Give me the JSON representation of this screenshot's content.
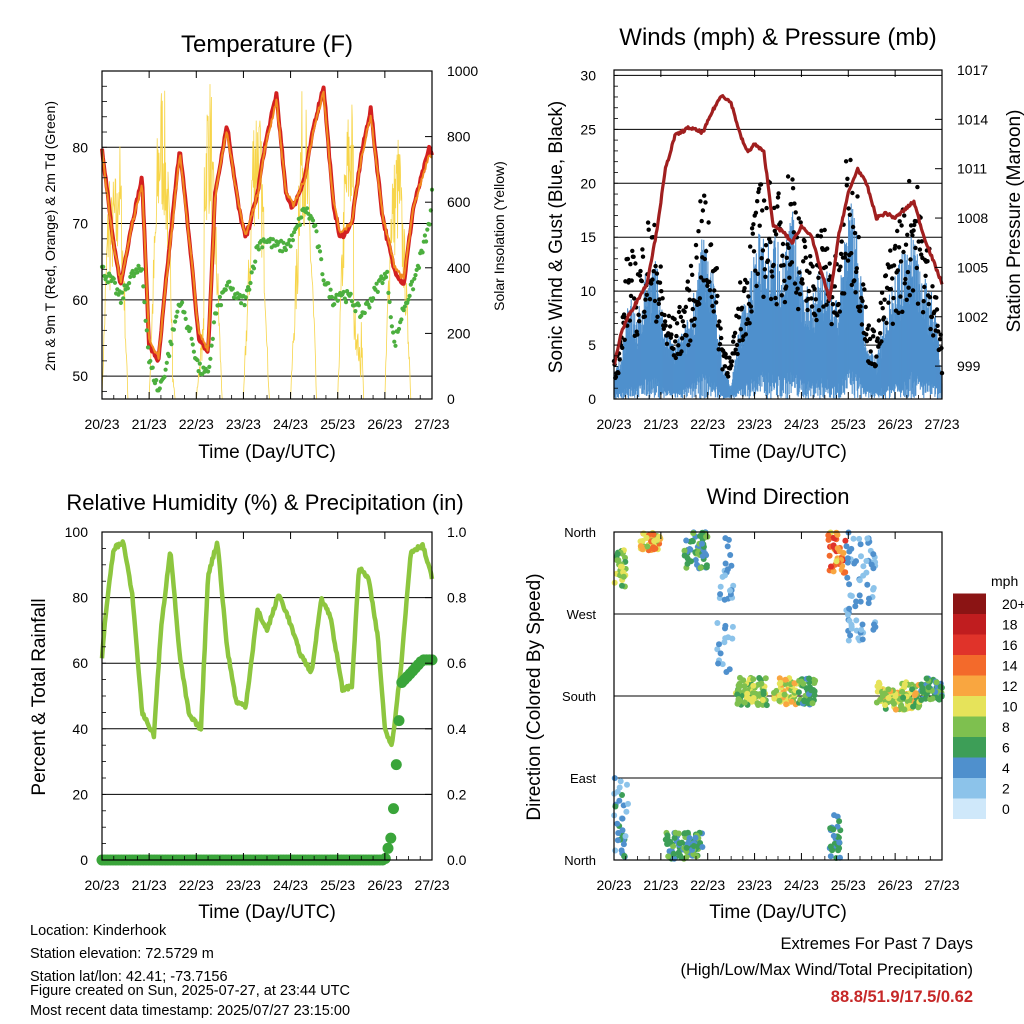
{
  "time_ticks": [
    "20/23",
    "21/23",
    "22/23",
    "23/23",
    "24/23",
    "25/23",
    "26/23",
    "27/23"
  ],
  "panels": {
    "temperature": {
      "title": "Temperature (F)",
      "xlabel": "Time (Day/UTC)",
      "ylabel_left": "2m & 9m T (Red, Orange) & 2m Td (Green)",
      "ylabel_right": "Solar Insolation (Yellow)",
      "left_ticks": [
        "50",
        "60",
        "70",
        "80"
      ],
      "right_ticks": [
        "0",
        "200",
        "400",
        "600",
        "800",
        "1000"
      ]
    },
    "winds": {
      "title": "Winds (mph) & Pressure (mb)",
      "xlabel": "Time (Day/UTC)",
      "ylabel_left": "Sonic Wind & Gust (Blue, Black)",
      "ylabel_right": "Station Pressure (Maroon)",
      "left_ticks": [
        "0",
        "5",
        "10",
        "15",
        "20",
        "25",
        "30"
      ],
      "right_ticks": [
        "999",
        "1002",
        "1005",
        "1008",
        "1011",
        "1014",
        "1017"
      ]
    },
    "humidity": {
      "title": "Relative Humidity (%) & Precipitation (in)",
      "xlabel": "Time (Day/UTC)",
      "ylabel_left": "Percent & Total Rainfall",
      "left_ticks": [
        "0",
        "20",
        "40",
        "60",
        "80",
        "100"
      ],
      "right_ticks": [
        "0.0",
        "0.2",
        "0.4",
        "0.6",
        "0.8",
        "1.0"
      ]
    },
    "direction": {
      "title": "Wind Direction",
      "xlabel": "Time (Day/UTC)",
      "ylabel_left": "Direction (Colored By Speed)",
      "dir_ticks": [
        "North",
        "East",
        "South",
        "West",
        "North"
      ],
      "colorbar_title": "mph",
      "colorbar_labels": [
        "0",
        "2",
        "4",
        "6",
        "8",
        "10",
        "12",
        "14",
        "16",
        "18",
        "20+"
      ],
      "colorbar_colors": [
        "#cfe8fa",
        "#8cc3ea",
        "#4f90cd",
        "#3d9e57",
        "#7ec04f",
        "#e6e35a",
        "#f9a640",
        "#f36a2b",
        "#e0332a",
        "#c01d1f",
        "#8b1414"
      ]
    }
  },
  "station": {
    "location": "Location: Kinderhook",
    "elevation": "Station elevation: 72.5729 m",
    "latlon": "Station lat/lon: 42.41; -73.7156",
    "created": "Figure created on Sun, 2025-07-27, at 23:44 UTC",
    "recent": "Most recent data timestamp: 2025/07/27 23:15:00"
  },
  "extremes": {
    "line1": "Extremes For Past 7 Days",
    "line2": "(High/Low/Max Wind/Total Precipitation)",
    "values": "88.8/51.9/17.5/0.62"
  },
  "chart_data": [
    {
      "type": "line",
      "title": "Temperature (F)",
      "xlabel": "Time (Day/UTC)",
      "ylabel": "2m & 9m T (Red, Orange) & 2m Td (Green)",
      "y2label": "Solar Insolation (Yellow)",
      "x_ticks": [
        "20/23",
        "21/23",
        "22/23",
        "23/23",
        "24/23",
        "25/23",
        "26/23",
        "27/23"
      ],
      "ylim": [
        47,
        90
      ],
      "y2lim": [
        0,
        1000
      ],
      "x": [
        0,
        0.25,
        0.4,
        0.6,
        0.85,
        1.0,
        1.2,
        1.35,
        1.65,
        1.9,
        2.05,
        2.25,
        2.4,
        2.65,
        2.9,
        3.05,
        3.3,
        3.45,
        3.7,
        3.9,
        4.05,
        4.3,
        4.5,
        4.7,
        4.9,
        5.05,
        5.3,
        5.5,
        5.7,
        5.95,
        6.05,
        6.2,
        6.4,
        6.6,
        6.95,
        7.0
      ],
      "series": [
        {
          "name": "2m T",
          "color": "#d32020",
          "values": [
            80,
            67,
            62,
            69,
            76,
            54,
            52,
            62,
            80,
            65,
            55,
            53,
            74,
            83,
            72,
            68,
            74,
            80,
            87,
            74,
            72,
            76,
            83,
            88,
            73,
            68,
            70,
            79,
            85,
            71,
            68,
            64,
            62,
            72,
            80,
            79
          ]
        },
        {
          "name": "9m T",
          "color": "#f28a1e",
          "values": [
            79.5,
            66.8,
            62.4,
            68.8,
            75.4,
            54.8,
            52.6,
            61.8,
            79.2,
            65.2,
            55.6,
            53.6,
            73.6,
            82.4,
            72.2,
            68.4,
            73.8,
            79.6,
            86.2,
            74.2,
            72.4,
            75.8,
            82.6,
            87.2,
            73.2,
            68.6,
            70.2,
            78.6,
            84.2,
            71.2,
            68.4,
            64.6,
            62.6,
            71.8,
            79.4,
            78.6
          ]
        },
        {
          "name": "2m Td",
          "color": "#4caf3e",
          "values": [
            64,
            62,
            60,
            63,
            64,
            52,
            48,
            51,
            60,
            55,
            51,
            50,
            58,
            62,
            60,
            60,
            67,
            68,
            67,
            67,
            68,
            72,
            70,
            63,
            60,
            61,
            60,
            58,
            60,
            63,
            63,
            54,
            59,
            62,
            70,
            74
          ]
        }
      ],
      "insolation": {
        "name": "Solar Insolation",
        "color": "#f7d54a",
        "peaks": [
          970,
          700,
          960,
          900,
          990,
          950,
          330,
          1000,
          820,
          740,
          970
        ]
      }
    },
    {
      "type": "line",
      "title": "Winds (mph) & Pressure (mb)",
      "xlabel": "Time (Day/UTC)",
      "ylabel": "Sonic Wind & Gust (Blue, Black)",
      "y2label": "Station Pressure (Maroon)",
      "ylim": [
        0,
        30.5
      ],
      "y2lim": [
        997,
        1017
      ],
      "x": [
        0,
        0.15,
        0.3,
        0.5,
        0.7,
        0.9,
        1.1,
        1.3,
        1.6,
        1.9,
        2.1,
        2.3,
        2.5,
        2.7,
        2.85,
        3.0,
        3.2,
        3.4,
        3.6,
        3.8,
        4.0,
        4.2,
        4.4,
        4.6,
        4.8,
        5.0,
        5.2,
        5.4,
        5.6,
        5.8,
        6.0,
        6.2,
        6.4,
        6.6,
        6.8,
        7.0
      ],
      "series": [
        {
          "name": "Station Pressure",
          "color": "#a01f1f",
          "values": [
            999,
            1001,
            1002,
            1003,
            1004,
            1007,
            1011,
            1013,
            1013.5,
            1013.2,
            1014.5,
            1015.5,
            1015,
            1013,
            1012,
            1012.5,
            1012,
            1007.5,
            1007.2,
            1006.5,
            1007.5,
            1007,
            1005,
            1003,
            1007,
            1009.5,
            1011,
            1010,
            1008,
            1008.3,
            1008,
            1008.5,
            1009,
            1007,
            1005.5,
            1004
          ]
        },
        {
          "name": "Gust",
          "color": "#000000",
          "values": [
            3,
            5,
            12,
            10,
            14,
            13,
            7,
            6,
            9,
            16,
            14,
            5,
            3,
            9,
            11,
            15,
            17,
            16,
            15,
            19,
            13,
            11,
            14,
            12,
            10,
            20,
            16,
            6,
            5,
            10,
            13,
            15,
            18,
            13,
            11,
            4
          ]
        },
        {
          "name": "Sonic Wind",
          "color": "#4f90cd",
          "values": [
            2,
            3,
            8,
            6,
            10,
            10,
            5,
            4,
            6,
            12,
            10,
            3,
            1,
            6,
            8,
            11,
            13,
            12,
            11,
            14,
            9,
            8,
            10,
            9,
            7,
            15,
            12,
            4,
            3,
            7,
            9,
            11,
            13,
            9,
            8,
            2
          ]
        }
      ]
    },
    {
      "type": "line",
      "title": "Relative Humidity (%) & Precipitation (in)",
      "xlabel": "Time (Day/UTC)",
      "ylabel": "Percent & Total Rainfall",
      "ylim": [
        0,
        100
      ],
      "y2lim": [
        0,
        1.0
      ],
      "x": [
        0,
        0.1,
        0.25,
        0.45,
        0.65,
        0.85,
        1.1,
        1.25,
        1.45,
        1.65,
        1.85,
        2.1,
        2.25,
        2.45,
        2.65,
        2.85,
        3.05,
        3.3,
        3.5,
        3.75,
        3.95,
        4.2,
        4.45,
        4.65,
        4.85,
        5.1,
        5.3,
        5.45,
        5.65,
        5.85,
        6.0,
        6.15,
        6.35,
        6.55,
        6.8,
        7.0
      ],
      "series": [
        {
          "name": "Relative Humidity",
          "color": "#8dc63f",
          "values": [
            62,
            78,
            95,
            97,
            80,
            45,
            38,
            70,
            95,
            62,
            44,
            40,
            87,
            97,
            65,
            48,
            47,
            76,
            70,
            81,
            74,
            63,
            57,
            80,
            74,
            52,
            53,
            89,
            86,
            68,
            40,
            35,
            60,
            94,
            96,
            86
          ]
        },
        {
          "name": "Total Rainfall",
          "color": "#3aa53a",
          "values": [
            0,
            0,
            0,
            0,
            0,
            0,
            0,
            0,
            0,
            0,
            0,
            0,
            0,
            0,
            0,
            0,
            0,
            0,
            0,
            0,
            0,
            0,
            0,
            0,
            0,
            0,
            0,
            0,
            0,
            0,
            0,
            0.08,
            0.54,
            0.57,
            0.61,
            0.61
          ]
        }
      ]
    },
    {
      "type": "scatter",
      "title": "Wind Direction",
      "xlabel": "Time (Day/UTC)",
      "ylabel": "Direction (Colored By Speed)",
      "y_ticks": [
        "North",
        "East",
        "South",
        "West",
        "North"
      ],
      "ylim": [
        0,
        360
      ],
      "colorbar": {
        "title": "mph",
        "labels": [
          "0",
          "2",
          "4",
          "6",
          "8",
          "10",
          "12",
          "14",
          "16",
          "18",
          "20+"
        ]
      },
      "segments": [
        {
          "x": [
            0.0,
            0.25
          ],
          "y": [
            300,
            340
          ],
          "speed": [
            6,
            10
          ]
        },
        {
          "x": [
            0.0,
            0.3
          ],
          "y": [
            0,
            90
          ],
          "speed": [
            2,
            6
          ]
        },
        {
          "x": [
            0.55,
            1.0
          ],
          "y": [
            340,
            360
          ],
          "speed": [
            8,
            14
          ]
        },
        {
          "x": [
            1.1,
            1.9
          ],
          "y": [
            0,
            30
          ],
          "speed": [
            4,
            8
          ]
        },
        {
          "x": [
            1.5,
            2.0
          ],
          "y": [
            320,
            360
          ],
          "speed": [
            4,
            8
          ]
        },
        {
          "x": [
            2.2,
            2.55
          ],
          "y": [
            200,
            360
          ],
          "speed": [
            2,
            4
          ]
        },
        {
          "x": [
            2.6,
            3.3
          ],
          "y": [
            170,
            200
          ],
          "speed": [
            6,
            10
          ]
        },
        {
          "x": [
            3.4,
            3.9
          ],
          "y": [
            170,
            200
          ],
          "speed": [
            8,
            12
          ]
        },
        {
          "x": [
            3.9,
            4.3
          ],
          "y": [
            170,
            200
          ],
          "speed": [
            4,
            8
          ]
        },
        {
          "x": [
            4.55,
            4.95
          ],
          "y": [
            310,
            360
          ],
          "speed": [
            10,
            16
          ]
        },
        {
          "x": [
            4.6,
            4.85
          ],
          "y": [
            0,
            50
          ],
          "speed": [
            4,
            6
          ]
        },
        {
          "x": [
            4.95,
            5.6
          ],
          "y": [
            240,
            360
          ],
          "speed": [
            2,
            4
          ]
        },
        {
          "x": [
            5.6,
            6.55
          ],
          "y": [
            165,
            195
          ],
          "speed": [
            6,
            12
          ]
        },
        {
          "x": [
            6.55,
            7.0
          ],
          "y": [
            175,
            200
          ],
          "speed": [
            4,
            8
          ]
        }
      ]
    }
  ]
}
